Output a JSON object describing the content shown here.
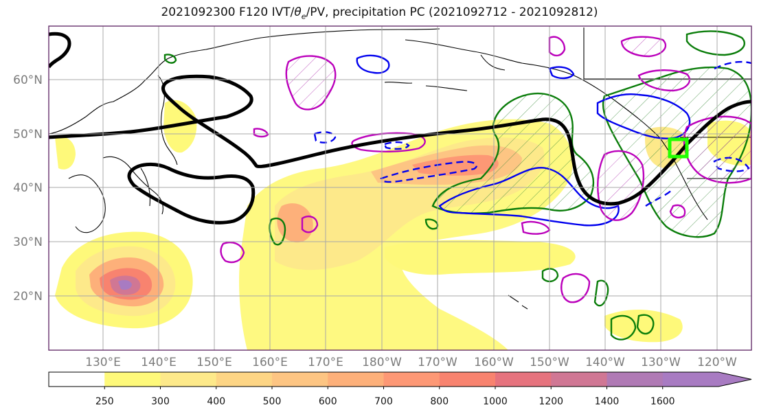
{
  "title": {
    "prefix": "2021092300 F120 IVT/",
    "theta": "θ",
    "theta_sub": "e",
    "suffix": "/PV, precipitation PC (2021092712 - 2021092812)"
  },
  "map": {
    "lat_labels": [
      "60°N",
      "50°N",
      "40°N",
      "30°N",
      "20°N"
    ],
    "lon_labels": [
      "130°E",
      "140°E",
      "150°E",
      "160°E",
      "170°E",
      "180°W",
      "170°W",
      "160°W",
      "150°W",
      "140°W",
      "130°W",
      "120°W"
    ],
    "colors": {
      "ivt_contour": "#000000",
      "theta_e_pos": "#0a7d0a",
      "theta_e_neg": "#0000ee",
      "pv": "#bb00bb",
      "target_box": "#22ff00",
      "coast": "#000000",
      "grid": "#a8a8a8"
    }
  },
  "colorbar": {
    "ticks": [
      "250",
      "300",
      "400",
      "500",
      "600",
      "700",
      "800",
      "1000",
      "1200",
      "1400",
      "1600"
    ],
    "colors": [
      "#ffffff",
      "#fef97a",
      "#fde98a",
      "#fdd585",
      "#fdc583",
      "#fdb07a",
      "#fd9875",
      "#f8836f",
      "#e6737e",
      "#d07794",
      "#b07ab5",
      "#a87bc2"
    ]
  }
}
